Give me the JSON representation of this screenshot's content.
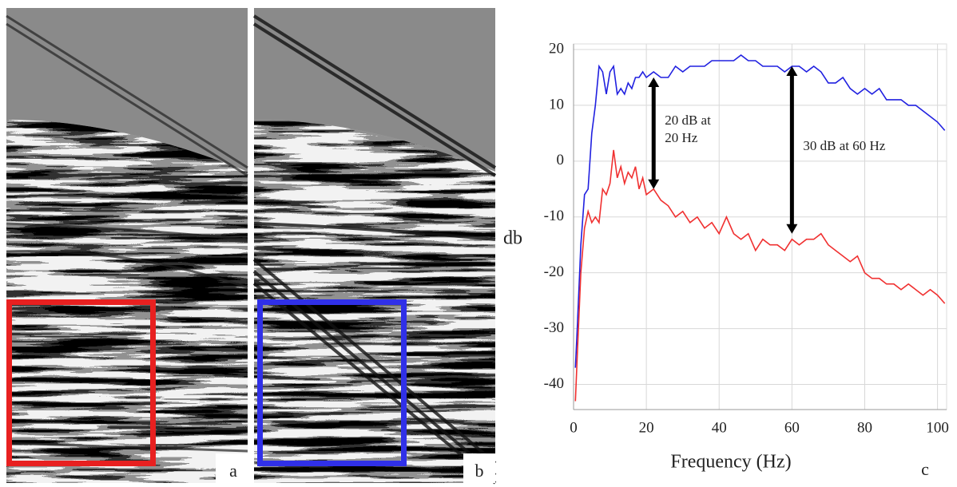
{
  "chart_data": {
    "type": "line",
    "panel_labels": [
      "a",
      "b",
      "c"
    ],
    "x_label": "Frequency (Hz)",
    "y_label": "db",
    "x": [
      0.5,
      1,
      2,
      3,
      4,
      5,
      6,
      7,
      8,
      9,
      10,
      11,
      12,
      13,
      14,
      15,
      16,
      17,
      18,
      19,
      20,
      22,
      24,
      26,
      28,
      30,
      32,
      34,
      36,
      38,
      40,
      42,
      44,
      46,
      48,
      50,
      52,
      54,
      56,
      58,
      60,
      62,
      64,
      66,
      68,
      70,
      72,
      74,
      76,
      78,
      80,
      82,
      84,
      86,
      88,
      90,
      92,
      94,
      96,
      98,
      100,
      102
    ],
    "series": [
      {
        "color": "#2020e0",
        "values": [
          -37,
          -30,
          -15,
          -6,
          -5,
          5,
          10,
          17,
          16,
          12,
          16,
          17,
          12,
          13,
          12,
          14,
          13,
          15,
          15,
          16,
          15,
          16,
          15,
          15,
          17,
          16,
          17,
          17,
          17,
          18,
          18,
          18,
          18,
          19,
          18,
          18,
          17,
          17,
          17,
          16,
          17,
          17,
          16,
          17,
          16,
          14,
          14,
          15,
          13,
          12,
          13,
          12,
          13,
          11,
          11,
          11,
          10,
          10,
          9,
          8,
          7,
          5.5
        ]
      },
      {
        "color": "#f03030",
        "values": [
          -43,
          -35,
          -20,
          -12,
          -9,
          -11,
          -10,
          -11,
          -5,
          -6,
          -4,
          2,
          -3,
          -1,
          -4,
          -2,
          -3,
          -1,
          -5,
          -3,
          -6,
          -5,
          -7,
          -8,
          -10,
          -9,
          -11,
          -10,
          -12,
          -11,
          -13,
          -10,
          -13,
          -14,
          -13,
          -16,
          -14,
          -15,
          -15,
          -16,
          -14,
          -15,
          -14,
          -14,
          -13,
          -15,
          -16,
          -17,
          -18,
          -17,
          -20,
          -21,
          -21,
          -22,
          -22,
          -23,
          -22,
          -23,
          -24,
          -23,
          -24,
          -25.5
        ]
      }
    ],
    "xlim": [
      0,
      102.5
    ],
    "xticks": [
      0,
      20,
      40,
      60,
      80,
      100
    ],
    "ylim": [
      -44.5,
      21
    ],
    "yticks": [
      -40,
      -30,
      -20,
      -10,
      0,
      10,
      20
    ],
    "grid": true,
    "annotations": [
      {
        "lines": [
          "20 dB at",
          "20 Hz"
        ],
        "x": 22,
        "y": [
          15,
          -5
        ]
      },
      {
        "lines": [
          "30 dB at 60 Hz"
        ],
        "x": 60,
        "y": [
          17,
          -13
        ]
      }
    ]
  }
}
